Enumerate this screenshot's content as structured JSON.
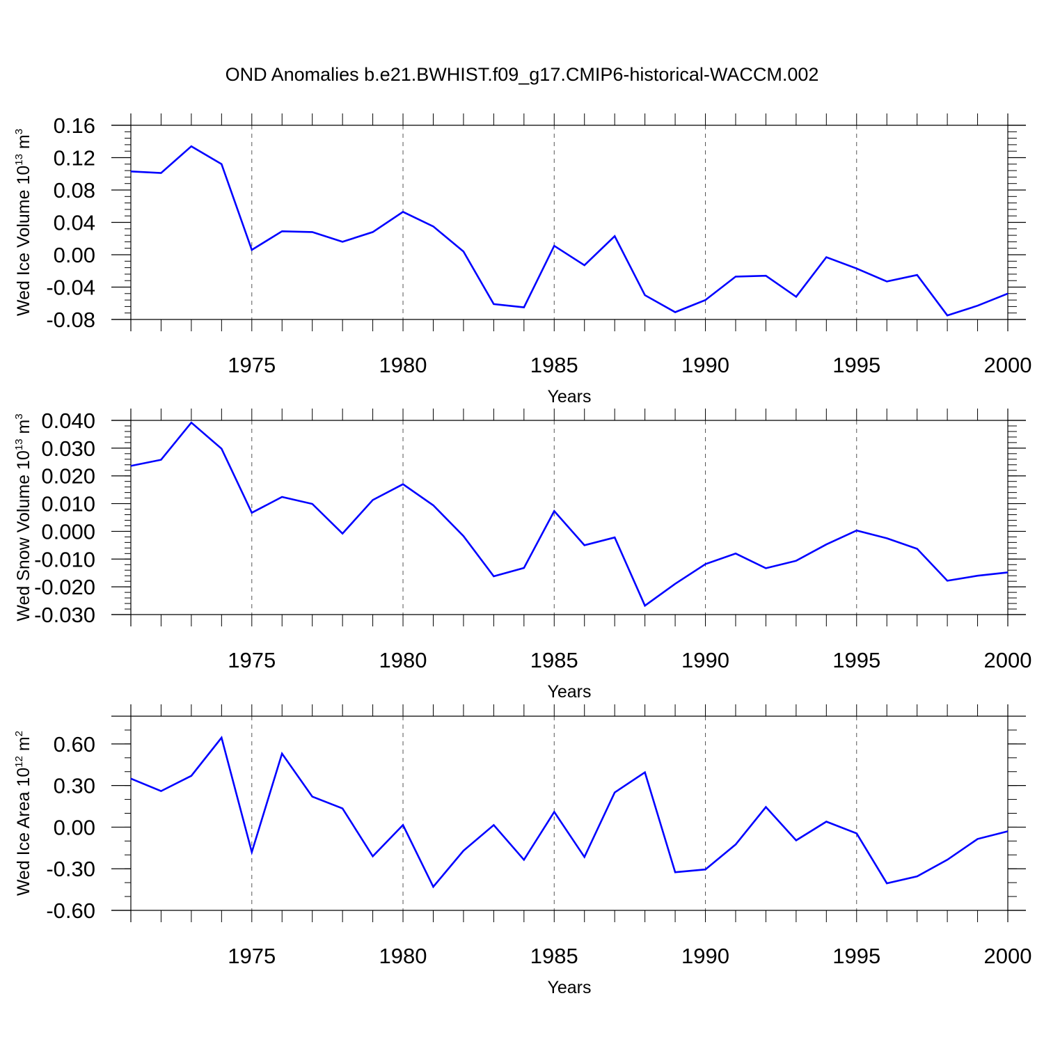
{
  "title": "OND Anomalies b.e21.BWHIST.f09_g17.CMIP6-historical-WACCM.002",
  "colors": {
    "line": "#0000ff",
    "axis": "#000000",
    "grid": "#555555"
  },
  "chart_data": [
    {
      "type": "line",
      "series_name": "Wed Ice Volume",
      "ylabel": {
        "text": "Wed Ice Volume 10",
        "exponent": "13",
        "unit": " m",
        "unit_exponent": "3"
      },
      "xlabel": "Years",
      "xlim": [
        1971,
        2000
      ],
      "ylim": [
        -0.08,
        0.16
      ],
      "yticks": [
        -0.08,
        -0.04,
        0.0,
        0.04,
        0.08,
        0.12,
        0.16
      ],
      "ytick_labels": [
        "-0.08",
        "-0.04",
        "0.00",
        "0.04",
        "0.08",
        "0.12",
        "0.16"
      ],
      "yminor_step": 0.008,
      "xticks": [
        1975,
        1980,
        1985,
        1990,
        1995,
        2000
      ],
      "xtick_labels": [
        "1975",
        "1980",
        "1985",
        "1990",
        "1995",
        "2000"
      ],
      "grid": "vertical dashed at x ticks",
      "x": [
        1971,
        1972,
        1973,
        1974,
        1975,
        1976,
        1977,
        1978,
        1979,
        1980,
        1981,
        1982,
        1983,
        1984,
        1985,
        1986,
        1987,
        1988,
        1989,
        1990,
        1991,
        1992,
        1993,
        1994,
        1995,
        1996,
        1997,
        1998,
        1999,
        2000
      ],
      "values": [
        0.103,
        0.101,
        0.134,
        0.112,
        0.006,
        0.029,
        0.028,
        0.016,
        0.028,
        0.053,
        0.035,
        0.004,
        -0.061,
        -0.065,
        0.011,
        -0.013,
        0.023,
        -0.05,
        -0.071,
        -0.056,
        -0.027,
        -0.026,
        -0.052,
        -0.003,
        -0.017,
        -0.033,
        -0.025,
        -0.075,
        -0.063,
        -0.048
      ]
    },
    {
      "type": "line",
      "series_name": "Wed Snow Volume",
      "ylabel": {
        "text": "Wed Snow Volume 10",
        "exponent": "13",
        "unit": " m",
        "unit_exponent": "3"
      },
      "xlabel": "Years",
      "xlim": [
        1971,
        2000
      ],
      "ylim": [
        -0.03,
        0.04
      ],
      "yticks": [
        -0.03,
        -0.02,
        -0.01,
        0.0,
        0.01,
        0.02,
        0.03,
        0.04
      ],
      "ytick_labels": [
        "-0.030",
        "-0.020",
        "-0.010",
        "0.000",
        "0.010",
        "0.020",
        "0.030",
        "0.040"
      ],
      "yminor_step": 0.002,
      "xticks": [
        1975,
        1980,
        1985,
        1990,
        1995,
        2000
      ],
      "xtick_labels": [
        "1975",
        "1980",
        "1985",
        "1990",
        "1995",
        "2000"
      ],
      "grid": "vertical dashed at x ticks",
      "x": [
        1971,
        1972,
        1973,
        1974,
        1975,
        1976,
        1977,
        1978,
        1979,
        1980,
        1981,
        1982,
        1983,
        1984,
        1985,
        1986,
        1987,
        1988,
        1989,
        1990,
        1991,
        1992,
        1993,
        1994,
        1995,
        1996,
        1997,
        1998,
        1999,
        2000
      ],
      "values": [
        0.0236,
        0.0258,
        0.0392,
        0.0298,
        0.0067,
        0.0124,
        0.0099,
        -0.0008,
        0.0113,
        0.017,
        0.0094,
        -0.0017,
        -0.0162,
        -0.0132,
        0.0073,
        -0.005,
        -0.0022,
        -0.0268,
        -0.0189,
        -0.0118,
        -0.008,
        -0.0133,
        -0.0106,
        -0.0047,
        0.0003,
        -0.0025,
        -0.0063,
        -0.0178,
        -0.016,
        -0.0148
      ]
    },
    {
      "type": "line",
      "series_name": "Wed Ice Area",
      "ylabel": {
        "text": "Wed Ice Area 10",
        "exponent": "12",
        "unit": " m",
        "unit_exponent": "2"
      },
      "xlabel": "Years",
      "xlim": [
        1971,
        2000
      ],
      "ylim": [
        -0.6,
        0.8
      ],
      "yticks": [
        -0.6,
        -0.3,
        0.0,
        0.3,
        0.6
      ],
      "ytick_labels": [
        "-0.60",
        "-0.30",
        "0.00",
        "0.30",
        "0.60"
      ],
      "yminor_step": 0.1,
      "xticks": [
        1975,
        1980,
        1985,
        1990,
        1995,
        2000
      ],
      "xtick_labels": [
        "1975",
        "1980",
        "1985",
        "1990",
        "1995",
        "2000"
      ],
      "grid": "vertical dashed at x ticks",
      "x": [
        1971,
        1972,
        1973,
        1974,
        1975,
        1976,
        1977,
        1978,
        1979,
        1980,
        1981,
        1982,
        1983,
        1984,
        1985,
        1986,
        1987,
        1988,
        1989,
        1990,
        1991,
        1992,
        1993,
        1994,
        1995,
        1996,
        1997,
        1998,
        1999,
        2000
      ],
      "values": [
        0.35,
        0.26,
        0.37,
        0.645,
        -0.18,
        0.53,
        0.22,
        0.135,
        -0.21,
        0.015,
        -0.43,
        -0.17,
        0.015,
        -0.235,
        0.11,
        -0.215,
        0.25,
        0.395,
        -0.325,
        -0.305,
        -0.125,
        0.145,
        -0.095,
        0.04,
        -0.045,
        -0.405,
        -0.355,
        -0.235,
        -0.085,
        -0.03
      ]
    }
  ]
}
